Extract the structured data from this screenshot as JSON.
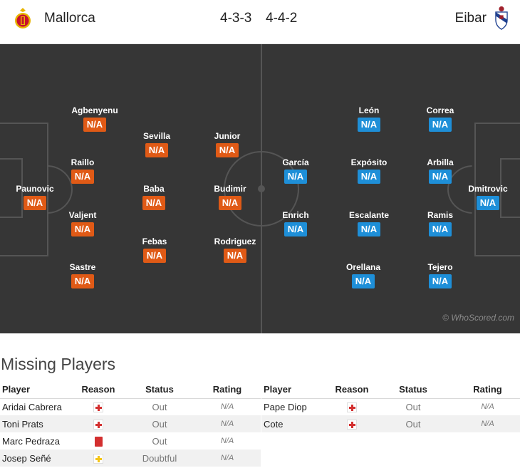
{
  "header": {
    "home_team": "Mallorca",
    "away_team": "Eibar",
    "home_formation": "4-3-3",
    "away_formation": "4-4-2"
  },
  "colors": {
    "home_rating": "#e05a16",
    "away_rating": "#1e8fd8",
    "pitch": "#363636"
  },
  "pitch": {
    "watermark": "© WhoScored.com",
    "home_players": [
      {
        "name": "Paunovic",
        "rating": "N/A"
      },
      {
        "name": "Agbenyenu",
        "rating": "N/A"
      },
      {
        "name": "Raillo",
        "rating": "N/A"
      },
      {
        "name": "Valjent",
        "rating": "N/A"
      },
      {
        "name": "Sastre",
        "rating": "N/A"
      },
      {
        "name": "Sevilla",
        "rating": "N/A"
      },
      {
        "name": "Baba",
        "rating": "N/A"
      },
      {
        "name": "Febas",
        "rating": "N/A"
      },
      {
        "name": "Junior",
        "rating": "N/A"
      },
      {
        "name": "Budimir",
        "rating": "N/A"
      },
      {
        "name": "Rodriguez",
        "rating": "N/A"
      }
    ],
    "away_players": [
      {
        "name": "García",
        "rating": "N/A"
      },
      {
        "name": "Enrich",
        "rating": "N/A"
      },
      {
        "name": "León",
        "rating": "N/A"
      },
      {
        "name": "Expósito",
        "rating": "N/A"
      },
      {
        "name": "Escalante",
        "rating": "N/A"
      },
      {
        "name": "Orellana",
        "rating": "N/A"
      },
      {
        "name": "Correa",
        "rating": "N/A"
      },
      {
        "name": "Arbilla",
        "rating": "N/A"
      },
      {
        "name": "Ramis",
        "rating": "N/A"
      },
      {
        "name": "Tejero",
        "rating": "N/A"
      },
      {
        "name": "Dmitrovic",
        "rating": "N/A"
      }
    ]
  },
  "missing": {
    "title": "Missing Players",
    "columns": [
      "Player",
      "Reason",
      "Status",
      "Rating"
    ],
    "home": [
      {
        "player": "Aridai Cabrera",
        "reason_icon": "injury-icon",
        "status": "Out",
        "rating": "N/A"
      },
      {
        "player": "Toni Prats",
        "reason_icon": "injury-icon",
        "status": "Out",
        "rating": "N/A"
      },
      {
        "player": "Marc Pedraza",
        "reason_icon": "red-card-icon",
        "status": "Out",
        "rating": "N/A"
      },
      {
        "player": "Josep Señé",
        "reason_icon": "doubtful-icon",
        "status": "Doubtful",
        "rating": "N/A"
      }
    ],
    "away": [
      {
        "player": "Pape Diop",
        "reason_icon": "injury-icon",
        "status": "Out",
        "rating": "N/A"
      },
      {
        "player": "Cote",
        "reason_icon": "injury-icon",
        "status": "Out",
        "rating": "N/A"
      }
    ]
  }
}
